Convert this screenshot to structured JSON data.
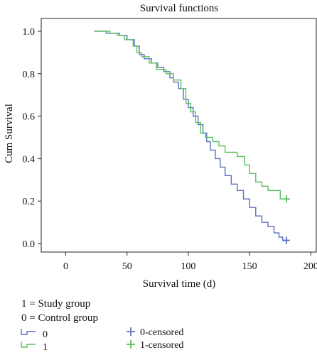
{
  "chart_data": {
    "type": "line",
    "title": "Survival functions",
    "xlabel": "Survival time (d)",
    "ylabel": "Cum Survival",
    "xlim": [
      -20,
      205
    ],
    "ylim": [
      -0.04,
      1.06
    ],
    "x_ticks": [
      "0",
      "50",
      "100",
      "150",
      "200"
    ],
    "x_tick_values": [
      0,
      50,
      100,
      150,
      200
    ],
    "y_ticks": [
      "0.0",
      "0.2",
      "0.4",
      "0.6",
      "0.8",
      "1.0"
    ],
    "y_tick_values": [
      0.0,
      0.2,
      0.4,
      0.6,
      0.8,
      1.0
    ],
    "grid": false,
    "series": [
      {
        "name": "0",
        "color": "#5b6fc1",
        "step_points": [
          [
            23,
            1.0
          ],
          [
            33,
            1.0
          ],
          [
            33,
            0.99
          ],
          [
            44,
            0.99
          ],
          [
            44,
            0.98
          ],
          [
            50,
            0.98
          ],
          [
            50,
            0.96
          ],
          [
            56,
            0.96
          ],
          [
            56,
            0.93
          ],
          [
            60,
            0.93
          ],
          [
            60,
            0.89
          ],
          [
            64,
            0.89
          ],
          [
            64,
            0.87
          ],
          [
            70,
            0.87
          ],
          [
            70,
            0.85
          ],
          [
            75,
            0.85
          ],
          [
            75,
            0.83
          ],
          [
            80,
            0.83
          ],
          [
            80,
            0.81
          ],
          [
            85,
            0.81
          ],
          [
            85,
            0.78
          ],
          [
            88,
            0.78
          ],
          [
            88,
            0.76
          ],
          [
            92,
            0.76
          ],
          [
            92,
            0.73
          ],
          [
            96,
            0.73
          ],
          [
            96,
            0.68
          ],
          [
            100,
            0.68
          ],
          [
            100,
            0.64
          ],
          [
            104,
            0.64
          ],
          [
            104,
            0.6
          ],
          [
            108,
            0.6
          ],
          [
            108,
            0.56
          ],
          [
            112,
            0.56
          ],
          [
            112,
            0.52
          ],
          [
            115,
            0.52
          ],
          [
            115,
            0.48
          ],
          [
            118,
            0.48
          ],
          [
            118,
            0.44
          ],
          [
            122,
            0.44
          ],
          [
            122,
            0.4
          ],
          [
            126,
            0.4
          ],
          [
            126,
            0.36
          ],
          [
            130,
            0.36
          ],
          [
            130,
            0.32
          ],
          [
            135,
            0.32
          ],
          [
            135,
            0.28
          ],
          [
            140,
            0.28
          ],
          [
            140,
            0.25
          ],
          [
            145,
            0.25
          ],
          [
            145,
            0.21
          ],
          [
            150,
            0.21
          ],
          [
            150,
            0.17
          ],
          [
            155,
            0.17
          ],
          [
            155,
            0.13
          ],
          [
            160,
            0.13
          ],
          [
            160,
            0.1
          ],
          [
            165,
            0.1
          ],
          [
            165,
            0.08
          ],
          [
            170,
            0.08
          ],
          [
            170,
            0.05
          ],
          [
            174,
            0.05
          ],
          [
            174,
            0.03
          ],
          [
            177,
            0.03
          ],
          [
            177,
            0.015
          ],
          [
            181,
            0.015
          ]
        ]
      },
      {
        "name": "1",
        "color": "#5bbf5b",
        "step_points": [
          [
            23,
            1.0
          ],
          [
            36,
            1.0
          ],
          [
            36,
            0.99
          ],
          [
            42,
            0.99
          ],
          [
            42,
            0.98
          ],
          [
            48,
            0.98
          ],
          [
            48,
            0.96
          ],
          [
            55,
            0.96
          ],
          [
            55,
            0.93
          ],
          [
            58,
            0.93
          ],
          [
            58,
            0.9
          ],
          [
            62,
            0.9
          ],
          [
            62,
            0.88
          ],
          [
            68,
            0.88
          ],
          [
            68,
            0.85
          ],
          [
            74,
            0.85
          ],
          [
            74,
            0.82
          ],
          [
            82,
            0.82
          ],
          [
            82,
            0.8
          ],
          [
            88,
            0.8
          ],
          [
            88,
            0.77
          ],
          [
            94,
            0.77
          ],
          [
            94,
            0.73
          ],
          [
            98,
            0.73
          ],
          [
            98,
            0.66
          ],
          [
            102,
            0.66
          ],
          [
            102,
            0.62
          ],
          [
            106,
            0.62
          ],
          [
            106,
            0.57
          ],
          [
            110,
            0.57
          ],
          [
            110,
            0.52
          ],
          [
            114,
            0.52
          ],
          [
            114,
            0.5
          ],
          [
            120,
            0.5
          ],
          [
            120,
            0.48
          ],
          [
            125,
            0.48
          ],
          [
            125,
            0.46
          ],
          [
            130,
            0.46
          ],
          [
            130,
            0.43
          ],
          [
            140,
            0.43
          ],
          [
            140,
            0.41
          ],
          [
            146,
            0.41
          ],
          [
            146,
            0.37
          ],
          [
            150,
            0.37
          ],
          [
            150,
            0.33
          ],
          [
            155,
            0.33
          ],
          [
            155,
            0.29
          ],
          [
            160,
            0.29
          ],
          [
            160,
            0.27
          ],
          [
            165,
            0.27
          ],
          [
            165,
            0.25
          ],
          [
            175,
            0.25
          ],
          [
            175,
            0.21
          ],
          [
            181,
            0.21
          ]
        ]
      }
    ],
    "censored_markers": [
      {
        "series": "0",
        "x": 180,
        "y": 0.015,
        "color": "#5b6fc1"
      },
      {
        "series": "1",
        "x": 180,
        "y": 0.21,
        "color": "#5bbf5b"
      }
    ],
    "legend": {
      "placement": "bottom-left",
      "entries": [
        {
          "label": "0",
          "kind": "line",
          "color": "#5b6fc1"
        },
        {
          "label": "1",
          "kind": "line",
          "color": "#5bbf5b"
        },
        {
          "label": "0-censored",
          "kind": "cross",
          "color": "#5b6fc1"
        },
        {
          "label": "1-censored",
          "kind": "cross",
          "color": "#5bbf5b"
        }
      ]
    }
  },
  "notes": {
    "study": "1 = Study group",
    "control": "0 = Control group"
  }
}
